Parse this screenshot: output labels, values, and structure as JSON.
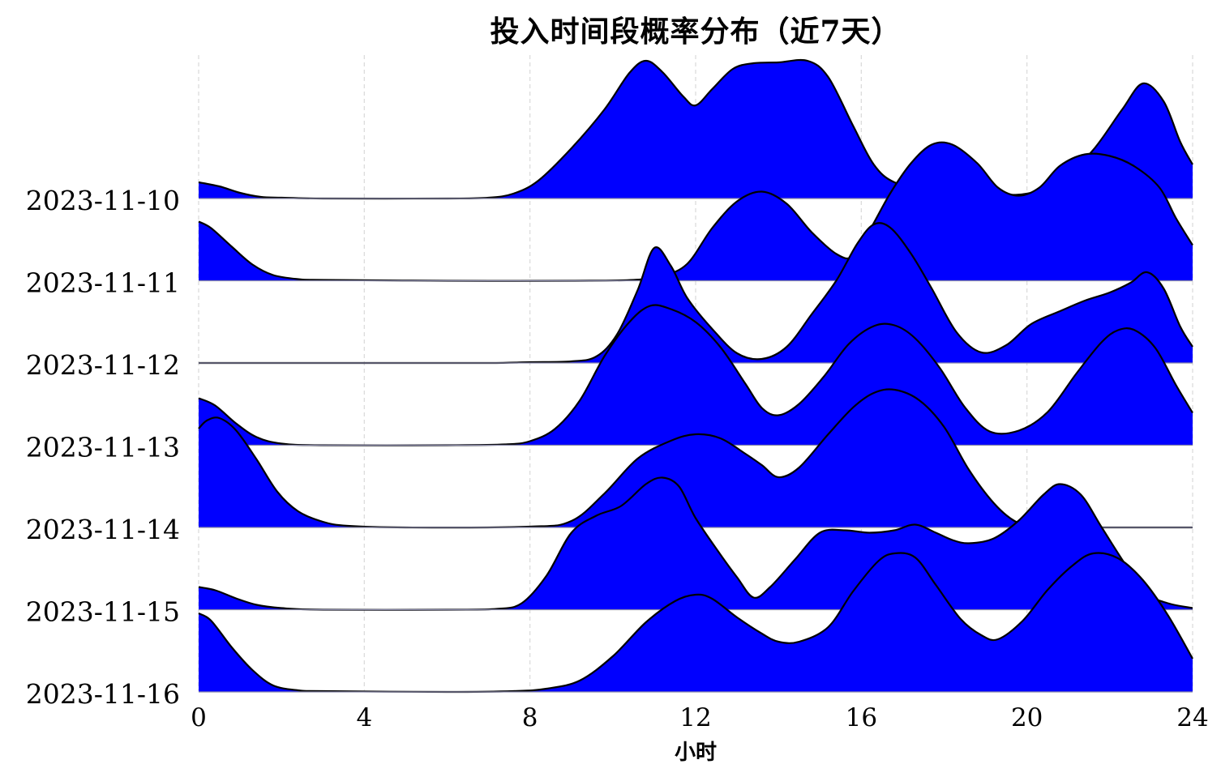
{
  "chart_data": {
    "type": "ridgeline",
    "title": "投入时间段概率分布（近7天）",
    "xlabel": "小时",
    "ylabel": "",
    "xlim": [
      0,
      24
    ],
    "xticks": [
      0,
      4,
      8,
      12,
      16,
      20,
      24
    ],
    "grid": "vertical-dashed",
    "fill_color": "#0000ff",
    "line_color": "#000000",
    "series": [
      {
        "name": "2023-11-10",
        "peak": 1.7,
        "points": [
          [
            0,
            0.2
          ],
          [
            0.5,
            0.15
          ],
          [
            1,
            0.07
          ],
          [
            1.5,
            0.02
          ],
          [
            2,
            0.01
          ],
          [
            3,
            0
          ],
          [
            6,
            0
          ],
          [
            7,
            0.01
          ],
          [
            7.6,
            0.06
          ],
          [
            8.2,
            0.22
          ],
          [
            9,
            0.62
          ],
          [
            9.8,
            1.1
          ],
          [
            10.4,
            1.55
          ],
          [
            10.8,
            1.7
          ],
          [
            11.2,
            1.56
          ],
          [
            11.7,
            1.26
          ],
          [
            12,
            1.15
          ],
          [
            12.4,
            1.35
          ],
          [
            12.9,
            1.6
          ],
          [
            13.4,
            1.67
          ],
          [
            14,
            1.68
          ],
          [
            14.7,
            1.7
          ],
          [
            15.2,
            1.5
          ],
          [
            15.8,
            0.9
          ],
          [
            16.3,
            0.42
          ],
          [
            16.8,
            0.2
          ],
          [
            17.6,
            0.12
          ],
          [
            18.5,
            0.07
          ],
          [
            19.3,
            0.05
          ],
          [
            20,
            0.06
          ],
          [
            20.8,
            0.2
          ],
          [
            21.6,
            0.6
          ],
          [
            22.3,
            1.1
          ],
          [
            22.8,
            1.42
          ],
          [
            23.3,
            1.2
          ],
          [
            23.7,
            0.7
          ],
          [
            24,
            0.42
          ]
        ]
      },
      {
        "name": "2023-11-11",
        "peak": 1.72,
        "points": [
          [
            0,
            0.73
          ],
          [
            0.3,
            0.65
          ],
          [
            0.8,
            0.42
          ],
          [
            1.3,
            0.2
          ],
          [
            1.8,
            0.07
          ],
          [
            2.4,
            0.02
          ],
          [
            3,
            0.01
          ],
          [
            6,
            0
          ],
          [
            9,
            0
          ],
          [
            10.5,
            0.01
          ],
          [
            11.2,
            0.06
          ],
          [
            11.8,
            0.21
          ],
          [
            12.4,
            0.65
          ],
          [
            13,
            0.98
          ],
          [
            13.6,
            1.1
          ],
          [
            14.2,
            0.95
          ],
          [
            14.8,
            0.6
          ],
          [
            15.4,
            0.33
          ],
          [
            15.8,
            0.3
          ],
          [
            16.2,
            0.62
          ],
          [
            16.7,
            1.08
          ],
          [
            17.2,
            1.45
          ],
          [
            17.7,
            1.68
          ],
          [
            18.2,
            1.68
          ],
          [
            18.8,
            1.45
          ],
          [
            19.3,
            1.15
          ],
          [
            19.8,
            1.05
          ],
          [
            20.3,
            1.15
          ],
          [
            20.8,
            1.42
          ],
          [
            21.4,
            1.56
          ],
          [
            22,
            1.54
          ],
          [
            22.6,
            1.41
          ],
          [
            23.2,
            1.15
          ],
          [
            23.6,
            0.77
          ],
          [
            24,
            0.44
          ]
        ]
      },
      {
        "name": "2023-11-12",
        "peak": 1.72,
        "points": [
          [
            0,
            0
          ],
          [
            4,
            0
          ],
          [
            7,
            0
          ],
          [
            8,
            0.01
          ],
          [
            9,
            0.02
          ],
          [
            9.6,
            0.08
          ],
          [
            10.1,
            0.35
          ],
          [
            10.6,
            0.9
          ],
          [
            11,
            1.42
          ],
          [
            11.4,
            1.2
          ],
          [
            11.8,
            0.8
          ],
          [
            12.4,
            0.42
          ],
          [
            13,
            0.12
          ],
          [
            13.6,
            0.05
          ],
          [
            14.2,
            0.2
          ],
          [
            14.8,
            0.6
          ],
          [
            15.4,
            1.02
          ],
          [
            15.9,
            1.47
          ],
          [
            16.3,
            1.71
          ],
          [
            16.7,
            1.67
          ],
          [
            17.2,
            1.35
          ],
          [
            17.7,
            0.92
          ],
          [
            18.3,
            0.38
          ],
          [
            18.9,
            0.13
          ],
          [
            19.5,
            0.22
          ],
          [
            20.1,
            0.48
          ],
          [
            20.8,
            0.64
          ],
          [
            21.4,
            0.77
          ],
          [
            22,
            0.87
          ],
          [
            22.5,
            0.99
          ],
          [
            22.9,
            1.12
          ],
          [
            23.3,
            0.92
          ],
          [
            23.7,
            0.45
          ],
          [
            24,
            0.2
          ]
        ]
      },
      {
        "name": "2023-11-13",
        "peak": 1.72,
        "points": [
          [
            0,
            0.58
          ],
          [
            0.4,
            0.49
          ],
          [
            0.9,
            0.27
          ],
          [
            1.4,
            0.1
          ],
          [
            2,
            0.02
          ],
          [
            3,
            0
          ],
          [
            6,
            0
          ],
          [
            7.4,
            0.01
          ],
          [
            8,
            0.05
          ],
          [
            8.6,
            0.2
          ],
          [
            9.2,
            0.55
          ],
          [
            9.8,
            1.1
          ],
          [
            10.4,
            1.52
          ],
          [
            10.9,
            1.72
          ],
          [
            11.4,
            1.68
          ],
          [
            12,
            1.52
          ],
          [
            12.6,
            1.21
          ],
          [
            13.2,
            0.76
          ],
          [
            13.6,
            0.46
          ],
          [
            14,
            0.37
          ],
          [
            14.5,
            0.51
          ],
          [
            15.1,
            0.85
          ],
          [
            15.7,
            1.25
          ],
          [
            16.3,
            1.47
          ],
          [
            16.8,
            1.48
          ],
          [
            17.3,
            1.32
          ],
          [
            17.9,
            0.95
          ],
          [
            18.5,
            0.47
          ],
          [
            19.1,
            0.17
          ],
          [
            19.8,
            0.18
          ],
          [
            20.5,
            0.41
          ],
          [
            21.2,
            0.89
          ],
          [
            21.8,
            1.27
          ],
          [
            22.2,
            1.42
          ],
          [
            22.6,
            1.42
          ],
          [
            23.1,
            1.2
          ],
          [
            23.6,
            0.74
          ],
          [
            24,
            0.4
          ]
        ]
      },
      {
        "name": "2023-11-14",
        "peak": 1.72,
        "points": [
          [
            0,
            1.22
          ],
          [
            0.2,
            1.32
          ],
          [
            0.5,
            1.35
          ],
          [
            0.9,
            1.2
          ],
          [
            1.4,
            0.84
          ],
          [
            1.9,
            0.44
          ],
          [
            2.4,
            0.2
          ],
          [
            3,
            0.07
          ],
          [
            3.6,
            0.02
          ],
          [
            5,
            0
          ],
          [
            8,
            0.01
          ],
          [
            9,
            0.08
          ],
          [
            9.8,
            0.42
          ],
          [
            10.6,
            0.85
          ],
          [
            11.4,
            1.07
          ],
          [
            12,
            1.15
          ],
          [
            12.6,
            1.1
          ],
          [
            13.2,
            0.91
          ],
          [
            13.6,
            0.77
          ],
          [
            14,
            0.62
          ],
          [
            14.5,
            0.74
          ],
          [
            15.2,
            1.15
          ],
          [
            15.8,
            1.48
          ],
          [
            16.3,
            1.66
          ],
          [
            16.8,
            1.7
          ],
          [
            17.4,
            1.57
          ],
          [
            18,
            1.24
          ],
          [
            18.6,
            0.71
          ],
          [
            19.2,
            0.3
          ],
          [
            19.7,
            0.08
          ],
          [
            20.2,
            0
          ],
          [
            21,
            0
          ],
          [
            24,
            0
          ]
        ]
      },
      {
        "name": "2023-11-15",
        "peak": 1.72,
        "points": [
          [
            0,
            0.28
          ],
          [
            0.4,
            0.24
          ],
          [
            0.9,
            0.14
          ],
          [
            1.4,
            0.06
          ],
          [
            2,
            0.02
          ],
          [
            3,
            0
          ],
          [
            6,
            0
          ],
          [
            7.2,
            0.01
          ],
          [
            7.8,
            0.08
          ],
          [
            8.4,
            0.42
          ],
          [
            9,
            0.95
          ],
          [
            9.6,
            1.16
          ],
          [
            10.2,
            1.28
          ],
          [
            10.8,
            1.55
          ],
          [
            11.2,
            1.63
          ],
          [
            11.6,
            1.52
          ],
          [
            12,
            1.13
          ],
          [
            12.6,
            0.68
          ],
          [
            13,
            0.4
          ],
          [
            13.4,
            0.15
          ],
          [
            13.8,
            0.28
          ],
          [
            14.4,
            0.62
          ],
          [
            15,
            0.95
          ],
          [
            15.6,
            0.98
          ],
          [
            16.2,
            0.95
          ],
          [
            16.8,
            0.98
          ],
          [
            17.3,
            1.05
          ],
          [
            17.8,
            0.95
          ],
          [
            18.2,
            0.86
          ],
          [
            18.6,
            0.82
          ],
          [
            19.2,
            0.88
          ],
          [
            19.8,
            1.1
          ],
          [
            20.4,
            1.42
          ],
          [
            20.8,
            1.55
          ],
          [
            21.3,
            1.42
          ],
          [
            21.8,
            1.02
          ],
          [
            22.4,
            0.54
          ],
          [
            22.9,
            0.2
          ],
          [
            23.4,
            0.08
          ],
          [
            24,
            0.02
          ]
        ]
      },
      {
        "name": "2023-11-16",
        "peak": 1.72,
        "points": [
          [
            0,
            0.97
          ],
          [
            0.3,
            0.88
          ],
          [
            0.8,
            0.55
          ],
          [
            1.3,
            0.27
          ],
          [
            1.8,
            0.08
          ],
          [
            2.4,
            0.02
          ],
          [
            3,
            0.01
          ],
          [
            6,
            0
          ],
          [
            7.6,
            0.01
          ],
          [
            8.4,
            0.04
          ],
          [
            9.2,
            0.14
          ],
          [
            10,
            0.44
          ],
          [
            10.8,
            0.86
          ],
          [
            11.5,
            1.12
          ],
          [
            12,
            1.2
          ],
          [
            12.4,
            1.15
          ],
          [
            13,
            0.92
          ],
          [
            13.6,
            0.72
          ],
          [
            14,
            0.62
          ],
          [
            14.5,
            0.62
          ],
          [
            15.2,
            0.8
          ],
          [
            15.8,
            1.24
          ],
          [
            16.4,
            1.61
          ],
          [
            16.8,
            1.71
          ],
          [
            17.3,
            1.66
          ],
          [
            17.8,
            1.32
          ],
          [
            18.4,
            0.9
          ],
          [
            18.9,
            0.7
          ],
          [
            19.3,
            0.65
          ],
          [
            19.9,
            0.88
          ],
          [
            20.5,
            1.26
          ],
          [
            21.1,
            1.56
          ],
          [
            21.6,
            1.71
          ],
          [
            22.2,
            1.65
          ],
          [
            22.8,
            1.38
          ],
          [
            23.4,
            0.95
          ],
          [
            24,
            0.41
          ]
        ]
      }
    ]
  }
}
